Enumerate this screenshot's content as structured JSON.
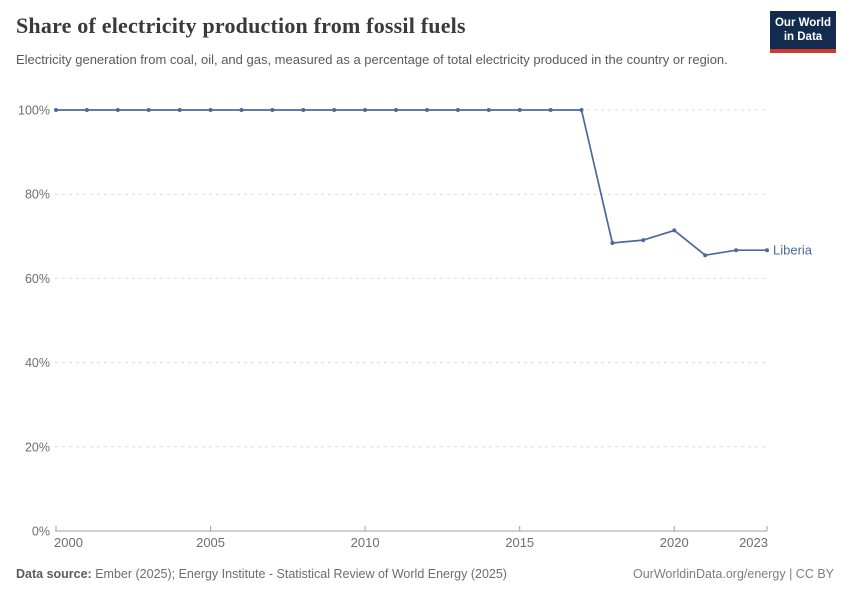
{
  "header": {
    "title": "Share of electricity production from fossil fuels",
    "subtitle": "Electricity generation from coal, oil, and gas, measured as a percentage of total electricity produced in the country or region.",
    "logo": {
      "line1": "Our World",
      "line2": "in Data",
      "bg_color": "#122b4e",
      "accent_color": "#d0392e"
    }
  },
  "footer": {
    "source_label": "Data source:",
    "source_text": " Ember (2025); Energy Institute - Statistical Review of World Energy (2025)",
    "credit": "OurWorldinData.org/energy | CC BY"
  },
  "theme": {
    "line_color": "#4c6a9c",
    "dot_color": "#4c6a9c",
    "entity_label_color": "#4c6a9c",
    "grid_color": "#dcdcdc",
    "axis_color": "#a0a0a0",
    "tick_label_color": "#6e6e6e"
  },
  "chart_data": {
    "type": "line",
    "title": "Share of electricity production from fossil fuels",
    "xlabel": "",
    "ylabel": "",
    "x": [
      2000,
      2001,
      2002,
      2003,
      2004,
      2005,
      2006,
      2007,
      2008,
      2009,
      2010,
      2011,
      2012,
      2013,
      2014,
      2015,
      2016,
      2017,
      2018,
      2019,
      2020,
      2021,
      2022,
      2023
    ],
    "series": [
      {
        "name": "Liberia",
        "values": [
          100,
          100,
          100,
          100,
          100,
          100,
          100,
          100,
          100,
          100,
          100,
          100,
          100,
          100,
          100,
          100,
          100,
          100,
          68.4,
          69.1,
          71.4,
          65.5,
          66.7,
          66.7
        ]
      }
    ],
    "xlim": [
      2000,
      2023
    ],
    "ylim": [
      0,
      100
    ],
    "yticks": [
      0,
      20,
      40,
      60,
      80,
      100
    ],
    "ytick_labels": [
      "0%",
      "20%",
      "40%",
      "60%",
      "80%",
      "100%"
    ],
    "xticks": [
      2000,
      2005,
      2010,
      2015,
      2020,
      2023
    ],
    "xtick_labels": [
      "2000",
      "2005",
      "2010",
      "2015",
      "2020",
      "2023"
    ],
    "grid": "horizontal-dashed",
    "legend": "end-of-line-label",
    "end_label": "Liberia",
    "markers": true
  }
}
